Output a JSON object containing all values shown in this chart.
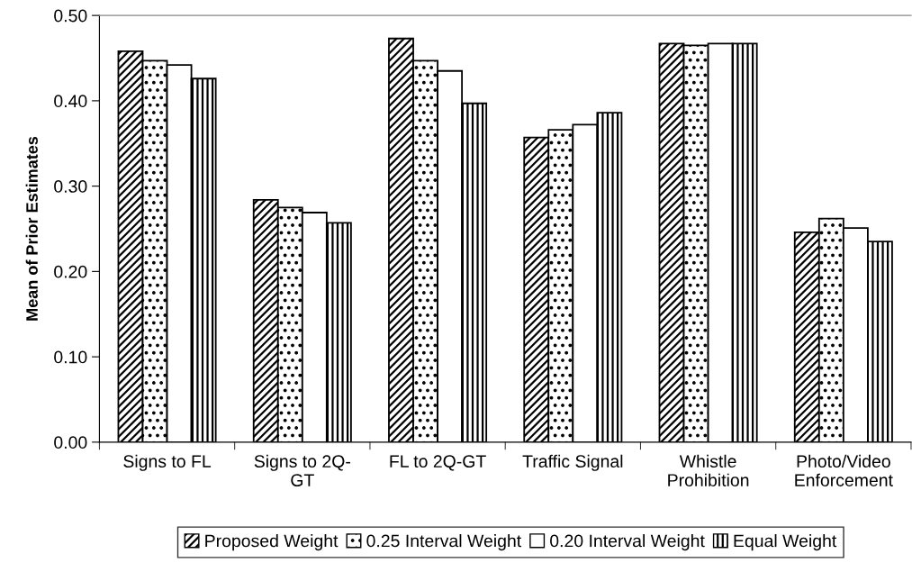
{
  "chart_data": {
    "type": "bar",
    "ylabel": "Mean of Prior Estimates",
    "categories": [
      "Signs to FL",
      "Signs to 2Q-\nGT",
      "FL to 2Q-GT",
      "Traffic Signal",
      "Whistle\nProhibition",
      "Photo/Video\nEnforcement"
    ],
    "series": [
      {
        "name": "Proposed Weight",
        "color": "#000000",
        "values": [
          0.458,
          0.284,
          0.473,
          0.357,
          0.467,
          0.246
        ]
      },
      {
        "name": "0.25 Interval Weight",
        "color": "#000000",
        "values": [
          0.447,
          0.275,
          0.447,
          0.366,
          0.465,
          0.262
        ]
      },
      {
        "name": "0.20 Interval Weight",
        "color": "#ffffff",
        "values": [
          0.442,
          0.269,
          0.435,
          0.372,
          0.467,
          0.251
        ]
      },
      {
        "name": "Equal Weight",
        "color": "#000000",
        "values": [
          0.426,
          0.257,
          0.397,
          0.386,
          0.467,
          0.235
        ]
      }
    ],
    "ylim": [
      0,
      0.5
    ],
    "yticks": [
      {
        "value": 0,
        "label": "0.00"
      },
      {
        "value": 0.1,
        "label": "0.10"
      },
      {
        "value": 0.2,
        "label": "0.20"
      },
      {
        "value": 0.3,
        "label": "0.30"
      },
      {
        "value": 0.4,
        "label": "0.40"
      },
      {
        "value": 0.5,
        "label": "0.50"
      }
    ],
    "grid": false,
    "legend": "bottom"
  }
}
